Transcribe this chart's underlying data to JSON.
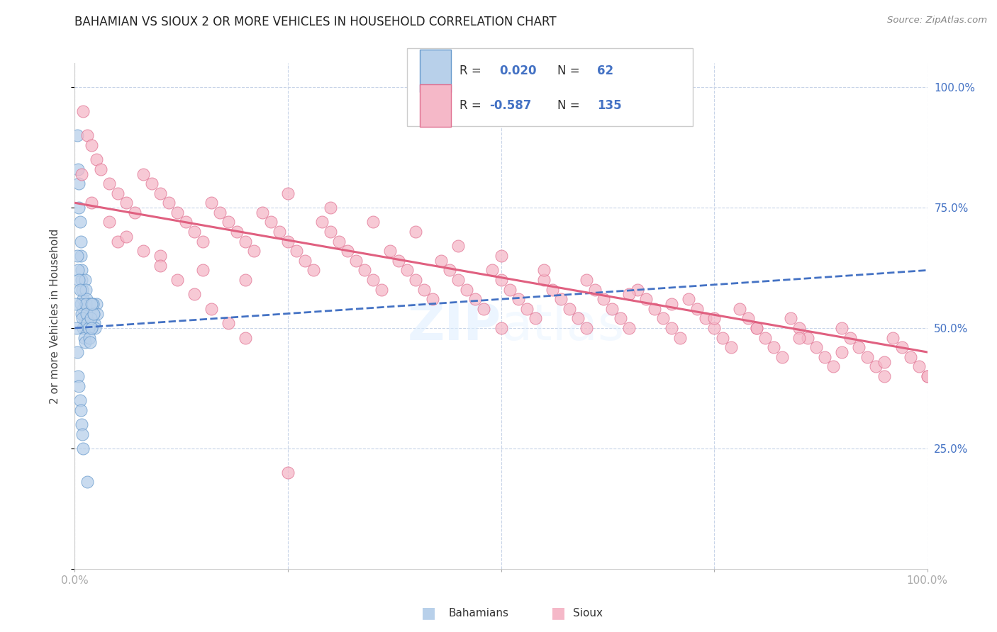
{
  "title": "BAHAMIAN VS SIOUX 2 OR MORE VEHICLES IN HOUSEHOLD CORRELATION CHART",
  "source": "Source: ZipAtlas.com",
  "ylabel": "2 or more Vehicles in Household",
  "xlim": [
    0.0,
    1.0
  ],
  "ylim": [
    0.0,
    1.05
  ],
  "bahamians_color": "#b8d0ea",
  "bahamians_edge": "#6699cc",
  "sioux_color": "#f5b8c8",
  "sioux_edge": "#e07090",
  "bahamian_line_color": "#4472c4",
  "sioux_line_color": "#e06080",
  "R_bahamian": 0.02,
  "N_bahamian": 62,
  "R_sioux": -0.587,
  "N_sioux": 135,
  "watermark": "ZIPatlas",
  "bg_color": "#ffffff",
  "grid_color": "#c8d4e8",
  "legend_label_bahamian": "Bahamians",
  "legend_label_sioux": "Sioux",
  "bahamians_x": [
    0.003,
    0.004,
    0.005,
    0.005,
    0.006,
    0.007,
    0.007,
    0.008,
    0.008,
    0.009,
    0.01,
    0.01,
    0.011,
    0.012,
    0.012,
    0.013,
    0.014,
    0.015,
    0.015,
    0.016,
    0.017,
    0.018,
    0.019,
    0.02,
    0.021,
    0.022,
    0.023,
    0.024,
    0.025,
    0.026,
    0.003,
    0.004,
    0.005,
    0.006,
    0.007,
    0.008,
    0.009,
    0.01,
    0.011,
    0.012,
    0.013,
    0.014,
    0.015,
    0.016,
    0.017,
    0.018,
    0.019,
    0.02,
    0.021,
    0.022,
    0.001,
    0.002,
    0.003,
    0.004,
    0.005,
    0.006,
    0.007,
    0.008,
    0.009,
    0.01,
    0.015,
    0.02
  ],
  "bahamians_y": [
    0.9,
    0.83,
    0.8,
    0.75,
    0.72,
    0.68,
    0.65,
    0.62,
    0.6,
    0.58,
    0.56,
    0.54,
    0.52,
    0.5,
    0.6,
    0.58,
    0.56,
    0.54,
    0.52,
    0.5,
    0.55,
    0.53,
    0.51,
    0.5,
    0.55,
    0.53,
    0.51,
    0.5,
    0.55,
    0.53,
    0.65,
    0.62,
    0.6,
    0.58,
    0.55,
    0.53,
    0.52,
    0.5,
    0.48,
    0.47,
    0.55,
    0.53,
    0.51,
    0.5,
    0.48,
    0.47,
    0.52,
    0.5,
    0.55,
    0.53,
    0.55,
    0.5,
    0.45,
    0.4,
    0.38,
    0.35,
    0.33,
    0.3,
    0.28,
    0.25,
    0.18,
    0.55
  ],
  "sioux_x": [
    0.008,
    0.01,
    0.015,
    0.02,
    0.025,
    0.03,
    0.04,
    0.05,
    0.06,
    0.07,
    0.08,
    0.09,
    0.1,
    0.11,
    0.12,
    0.13,
    0.14,
    0.15,
    0.16,
    0.17,
    0.18,
    0.19,
    0.2,
    0.21,
    0.22,
    0.23,
    0.24,
    0.25,
    0.26,
    0.27,
    0.28,
    0.29,
    0.3,
    0.31,
    0.32,
    0.33,
    0.34,
    0.35,
    0.36,
    0.37,
    0.38,
    0.39,
    0.4,
    0.41,
    0.42,
    0.43,
    0.44,
    0.45,
    0.46,
    0.47,
    0.48,
    0.49,
    0.5,
    0.51,
    0.52,
    0.53,
    0.54,
    0.55,
    0.56,
    0.57,
    0.58,
    0.59,
    0.6,
    0.61,
    0.62,
    0.63,
    0.64,
    0.65,
    0.66,
    0.67,
    0.68,
    0.69,
    0.7,
    0.71,
    0.72,
    0.73,
    0.74,
    0.75,
    0.76,
    0.77,
    0.78,
    0.79,
    0.8,
    0.81,
    0.82,
    0.83,
    0.84,
    0.85,
    0.86,
    0.87,
    0.88,
    0.89,
    0.9,
    0.91,
    0.92,
    0.93,
    0.94,
    0.95,
    0.96,
    0.97,
    0.98,
    0.99,
    1.0,
    0.05,
    0.1,
    0.15,
    0.2,
    0.25,
    0.3,
    0.35,
    0.4,
    0.45,
    0.5,
    0.55,
    0.6,
    0.65,
    0.7,
    0.75,
    0.8,
    0.85,
    0.9,
    0.95,
    1.0,
    0.02,
    0.04,
    0.06,
    0.08,
    0.1,
    0.12,
    0.14,
    0.16,
    0.18,
    0.2,
    0.25,
    0.5
  ],
  "sioux_y": [
    0.82,
    0.95,
    0.9,
    0.88,
    0.85,
    0.83,
    0.8,
    0.78,
    0.76,
    0.74,
    0.82,
    0.8,
    0.78,
    0.76,
    0.74,
    0.72,
    0.7,
    0.68,
    0.76,
    0.74,
    0.72,
    0.7,
    0.68,
    0.66,
    0.74,
    0.72,
    0.7,
    0.68,
    0.66,
    0.64,
    0.62,
    0.72,
    0.7,
    0.68,
    0.66,
    0.64,
    0.62,
    0.6,
    0.58,
    0.66,
    0.64,
    0.62,
    0.6,
    0.58,
    0.56,
    0.64,
    0.62,
    0.6,
    0.58,
    0.56,
    0.54,
    0.62,
    0.6,
    0.58,
    0.56,
    0.54,
    0.52,
    0.6,
    0.58,
    0.56,
    0.54,
    0.52,
    0.5,
    0.58,
    0.56,
    0.54,
    0.52,
    0.5,
    0.58,
    0.56,
    0.54,
    0.52,
    0.5,
    0.48,
    0.56,
    0.54,
    0.52,
    0.5,
    0.48,
    0.46,
    0.54,
    0.52,
    0.5,
    0.48,
    0.46,
    0.44,
    0.52,
    0.5,
    0.48,
    0.46,
    0.44,
    0.42,
    0.5,
    0.48,
    0.46,
    0.44,
    0.42,
    0.4,
    0.48,
    0.46,
    0.44,
    0.42,
    0.4,
    0.68,
    0.65,
    0.62,
    0.6,
    0.78,
    0.75,
    0.72,
    0.7,
    0.67,
    0.65,
    0.62,
    0.6,
    0.57,
    0.55,
    0.52,
    0.5,
    0.48,
    0.45,
    0.43,
    0.4,
    0.76,
    0.72,
    0.69,
    0.66,
    0.63,
    0.6,
    0.57,
    0.54,
    0.51,
    0.48,
    0.2,
    0.5
  ],
  "sioux_line_start_y": 0.76,
  "sioux_line_end_y": 0.45,
  "bahamian_line_start_y": 0.5,
  "bahamian_line_end_y": 0.62
}
